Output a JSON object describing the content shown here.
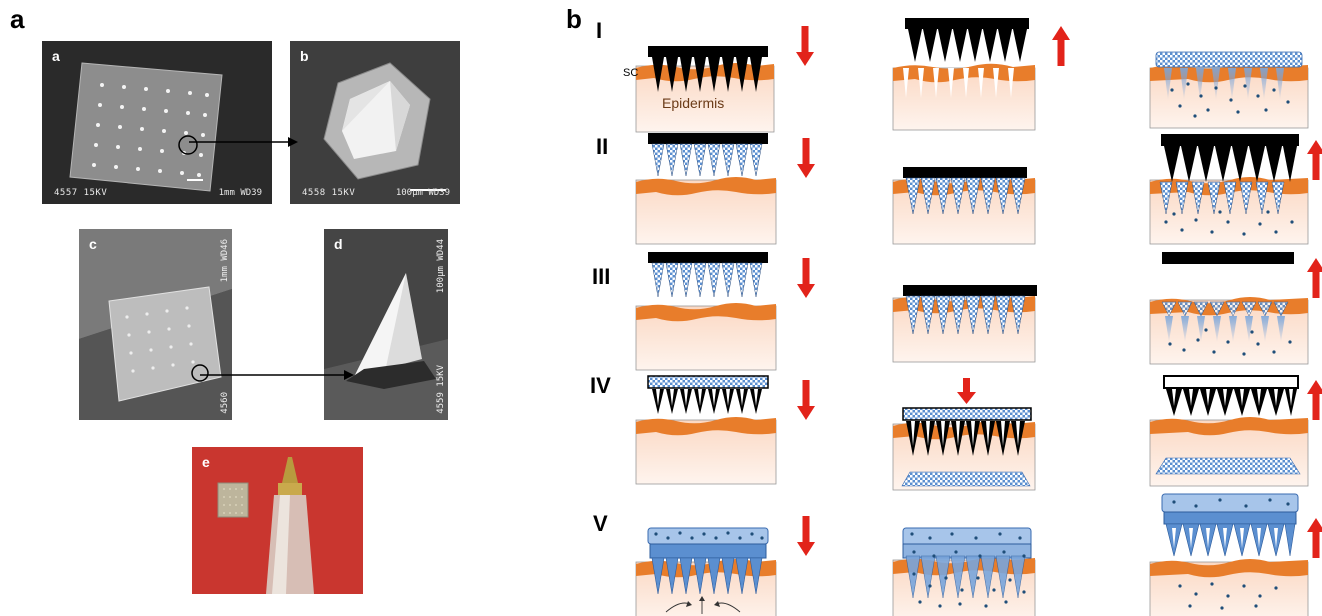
{
  "panel_a_letter": "a",
  "panel_b_letter": "b",
  "sem_images": [
    {
      "label": "a",
      "footer_left": "4557  15KV",
      "footer_right": "1mm WD39"
    },
    {
      "label": "b",
      "footer_left": "4558  15KV",
      "footer_right": "100μm WD39"
    },
    {
      "label": "c",
      "side_text": "1mm WD46",
      "footer_left": "4560"
    },
    {
      "label": "d",
      "side_text": "100μm WD44",
      "footer_left": "4559  15KV"
    },
    {
      "label": "e"
    }
  ],
  "rows": [
    "I",
    "II",
    "III",
    "IV",
    "V"
  ],
  "layer_labels": {
    "sc": "SC",
    "epidermis": "Epidermis"
  },
  "colors": {
    "arrow_red": "#e2231a",
    "stratum_orange": "#e87d2b",
    "skin_pink": "#fbe1d1",
    "needle_black": "#000000",
    "drug_blue": "#5b8fd0",
    "dot_navy": "#1f4e79"
  }
}
